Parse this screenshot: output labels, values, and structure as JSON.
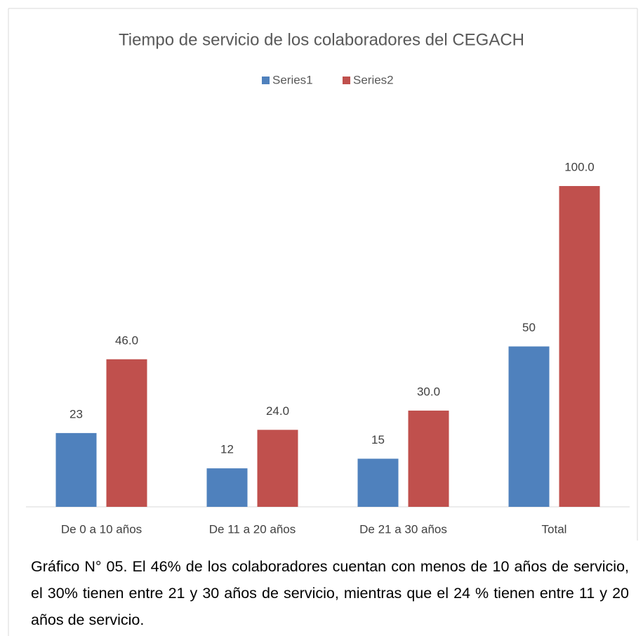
{
  "chart_data": {
    "type": "bar",
    "title": "Tiempo de servicio de los colaboradores del CEGACH",
    "categories": [
      "De  0 a 10 años",
      "De 11 a 20 años",
      "De 21 a 30 años",
      "Total"
    ],
    "series": [
      {
        "name": "Series1",
        "color": "#4f81bd",
        "values": [
          23,
          12,
          15,
          50
        ]
      },
      {
        "name": "Series2",
        "color": "#c0504d",
        "values": [
          46,
          24,
          30,
          100
        ],
        "value_labels": [
          "46.0",
          "24.0",
          "30.0",
          "100.0"
        ]
      }
    ],
    "ylim": [
      0,
      100
    ],
    "legend": "top"
  },
  "caption": "Gráfico N° 05. El 46% de los colaboradores cuentan con menos de 10 años de servicio, el 30% tienen entre 21 y  30 años de servicio, mientras que el 24 %  tienen entre 11 y 20 años de servicio."
}
